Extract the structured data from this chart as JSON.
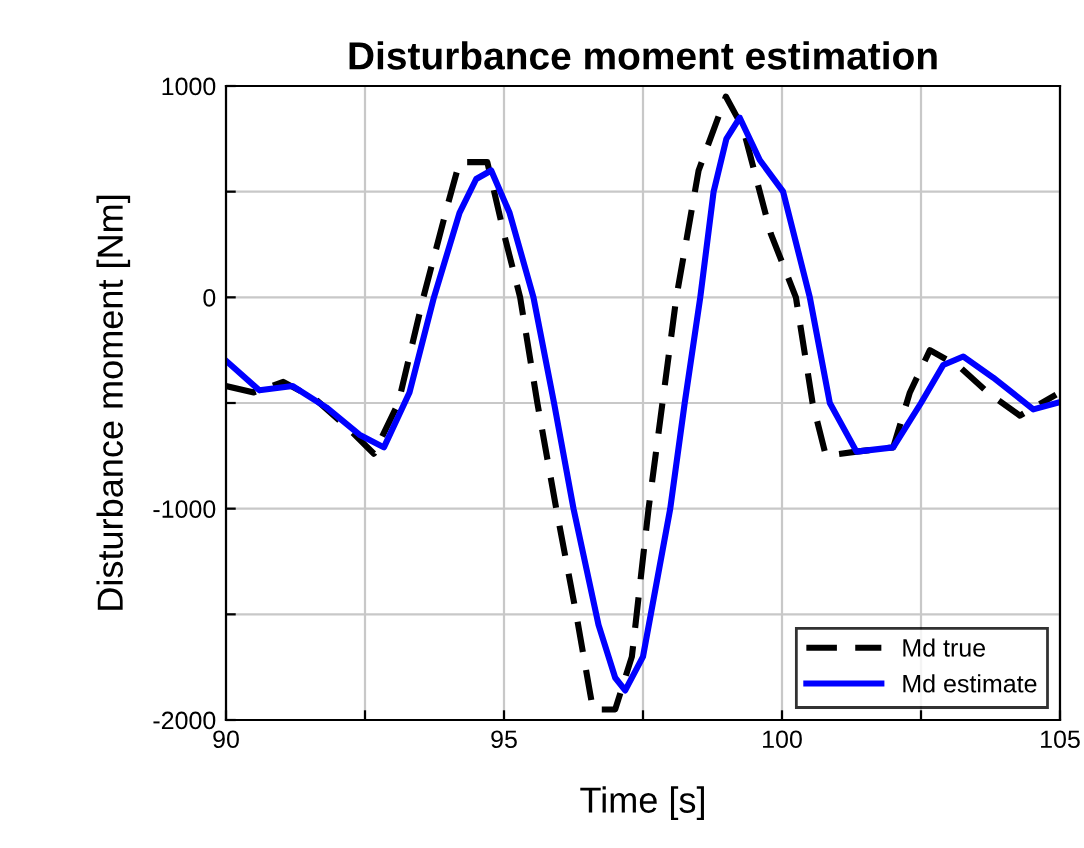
{
  "chart_data": {
    "type": "line",
    "title": "Disturbance moment estimation",
    "xlabel": "Time [s]",
    "ylabel": "Disturbance moment [Nm]",
    "xlim": [
      90,
      105
    ],
    "xticks": [
      90,
      {
        "value": 92.5,
        "label": null
      },
      95,
      {
        "value": 97.5,
        "label": null
      },
      100,
      {
        "value": 102.5,
        "label": null
      },
      105
    ],
    "ylim": [
      -2000,
      1000
    ],
    "yticks": [
      -2000,
      {
        "value": -1500,
        "label": null
      },
      -1000,
      {
        "value": -500,
        "label": null
      },
      0,
      {
        "value": 500,
        "label": null
      },
      1000
    ],
    "grid": true,
    "legend": "bottom right",
    "series": [
      {
        "name": "Md true",
        "color": "#000000",
        "line_style": "dashed",
        "x": [
          90,
          90.5,
          91.03,
          91.6,
          92.2,
          92.66,
          93.1,
          93.55,
          94.0,
          94.2,
          94.7,
          95.0,
          95.29,
          95.6,
          95.94,
          96.3,
          96.6,
          97.0,
          97.3,
          97.6,
          97.85,
          98.1,
          98.5,
          98.99,
          99.3,
          99.8,
          100.25,
          100.55,
          100.79,
          101.34,
          102.0,
          102.3,
          102.66,
          103.2,
          103.7,
          104.28,
          104.93
        ],
        "values": [
          -420,
          -450,
          -400,
          -480,
          -620,
          -740,
          -500,
          0,
          450,
          640,
          640,
          300,
          0,
          -500,
          -1000,
          -1500,
          -1950,
          -1950,
          -1700,
          -1000,
          -500,
          0,
          600,
          950,
          800,
          300,
          0,
          -500,
          -750,
          -730,
          -710,
          -450,
          -250,
          -330,
          -450,
          -560,
          -460
        ]
      },
      {
        "name": "Md estimate",
        "color": "#0000ff",
        "line_style": "solid",
        "x": [
          90,
          90.6,
          91.2,
          91.8,
          92.4,
          92.84,
          93.3,
          93.74,
          94.2,
          94.5,
          94.77,
          95.1,
          95.53,
          95.9,
          96.25,
          96.7,
          97.0,
          97.18,
          97.5,
          97.99,
          98.25,
          98.53,
          98.77,
          99.0,
          99.24,
          99.6,
          100.02,
          100.5,
          100.86,
          101.34,
          102.0,
          102.5,
          102.9,
          103.26,
          103.8,
          104.52,
          104.94
        ],
        "values": [
          -300,
          -440,
          -420,
          -520,
          -650,
          -710,
          -450,
          0,
          400,
          560,
          600,
          400,
          0,
          -500,
          -1000,
          -1550,
          -1800,
          -1860,
          -1700,
          -1000,
          -500,
          0,
          500,
          750,
          850,
          650,
          500,
          0,
          -500,
          -730,
          -710,
          -500,
          -320,
          -280,
          -380,
          -530,
          -500
        ]
      }
    ]
  }
}
